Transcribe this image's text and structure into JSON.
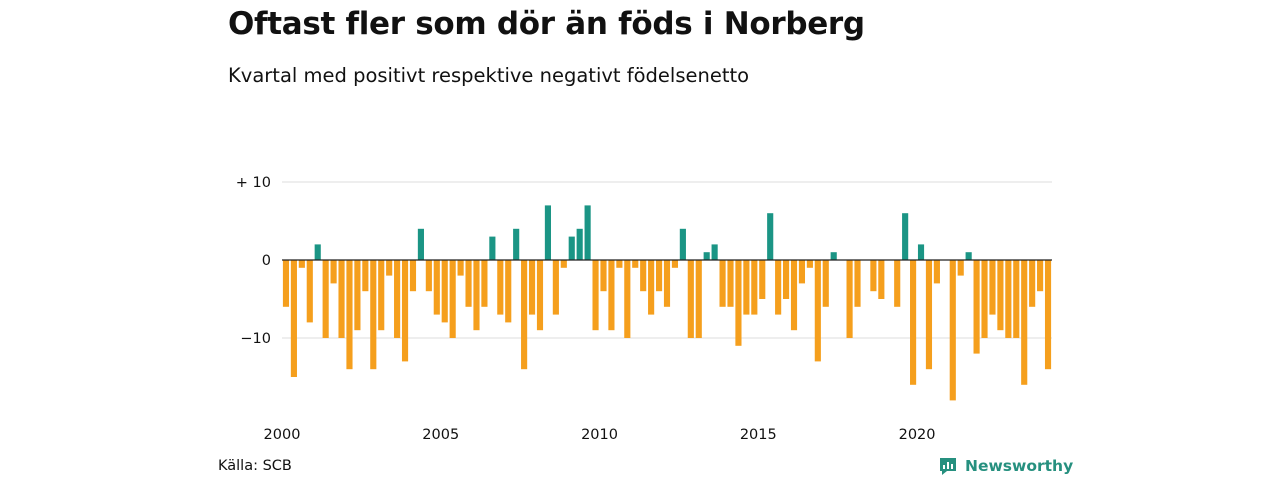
{
  "title": "Oftast fler som dör än föds i Norberg",
  "subtitle": "Kvartal med positivt respektive negativt födelsenetto",
  "source": "Källa: SCB",
  "brand": "Newsworthy",
  "colors": {
    "positive": "#1b9585",
    "negative": "#f59f1d",
    "grid": "#dcdcdc",
    "zero": "#222222",
    "brand": "#26907f"
  },
  "chart_data": {
    "type": "bar",
    "title": "Oftast fler som dör än föds i Norberg",
    "subtitle": "Kvartal med positivt respektive negativt födelsenetto",
    "xlabel": "",
    "ylabel": "",
    "ylim": [
      -20,
      11
    ],
    "yticks": [
      {
        "value": 10,
        "label": "+ 10"
      },
      {
        "value": 0,
        "label": "0"
      },
      {
        "value": -10,
        "label": "−10"
      }
    ],
    "xticks": [
      "2000",
      "2005",
      "2010",
      "2015",
      "2020"
    ],
    "grid": true,
    "start_period": "2000 Q1",
    "values": [
      -6,
      -15,
      -1,
      -8,
      2,
      -10,
      -3,
      -10,
      -14,
      -9,
      -4,
      -14,
      -9,
      -2,
      -10,
      -13,
      -4,
      4,
      -4,
      -7,
      -8,
      -10,
      -2,
      -6,
      -9,
      -6,
      3,
      -7,
      -8,
      4,
      -14,
      -7,
      -9,
      7,
      -7,
      -1,
      3,
      4,
      7,
      -9,
      -4,
      -9,
      -1,
      -10,
      -1,
      -4,
      -7,
      -4,
      -6,
      -1,
      4,
      -10,
      -10,
      1,
      2,
      -6,
      -6,
      -11,
      -7,
      -7,
      -5,
      6,
      -7,
      -5,
      -9,
      -3,
      -1,
      -13,
      -6,
      1,
      0,
      -10,
      -6,
      0,
      -4,
      -5,
      0,
      -6,
      6,
      -16,
      2,
      -14,
      -3,
      0,
      -18,
      -2,
      1,
      -12,
      -10,
      -7,
      -9,
      -10,
      -10,
      -16,
      -6,
      -4,
      -14
    ]
  }
}
